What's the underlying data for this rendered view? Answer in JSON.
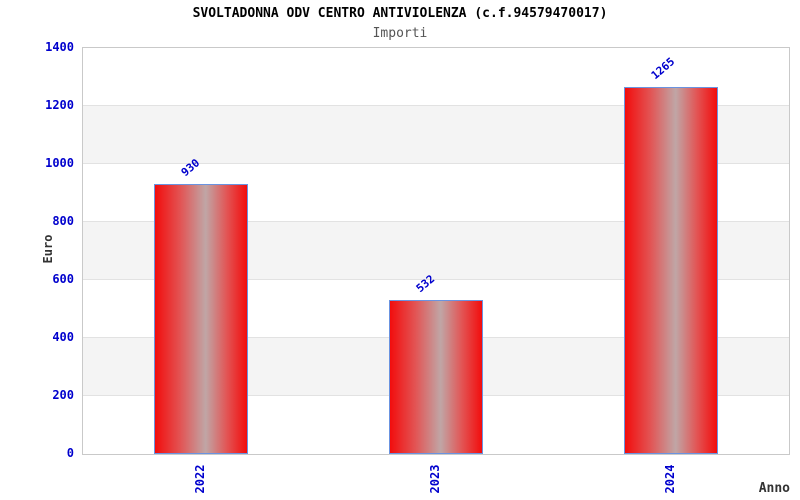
{
  "header": {
    "title": "SVOLTADONNA ODV CENTRO ANTIVIOLENZA (c.f.94579470017)",
    "subtitle": "Importi"
  },
  "chart_data": {
    "type": "bar",
    "title": "SVOLTADONNA ODV CENTRO ANTIVIOLENZA (c.f.94579470017)",
    "subtitle": "Importi",
    "categories": [
      "2022",
      "2023",
      "2024"
    ],
    "values": [
      930,
      532,
      1265
    ],
    "value_labels": [
      "930",
      "532",
      "1265"
    ],
    "xlabel": "Anno",
    "ylabel": "Euro",
    "ylim": [
      0,
      1400
    ],
    "yticks": [
      0,
      200,
      400,
      600,
      800,
      1000,
      1200,
      1400
    ],
    "grid": "horizontal-bands-alternating",
    "legend": "none",
    "colors": {
      "bar_red": "#f20d0d",
      "bar_mid": "#e25555",
      "bar_highlight": "#c0a6a6",
      "bar_border": "#6a93e0",
      "tick_label": "#0000cd",
      "value_label": "#0000cd",
      "axis_label": "#333333",
      "band_gray": "#f4f4f4",
      "gridline": "#e2e2e2",
      "plot_border": "#c9c9c9",
      "title": "#000000",
      "subtitle": "#555555"
    }
  }
}
